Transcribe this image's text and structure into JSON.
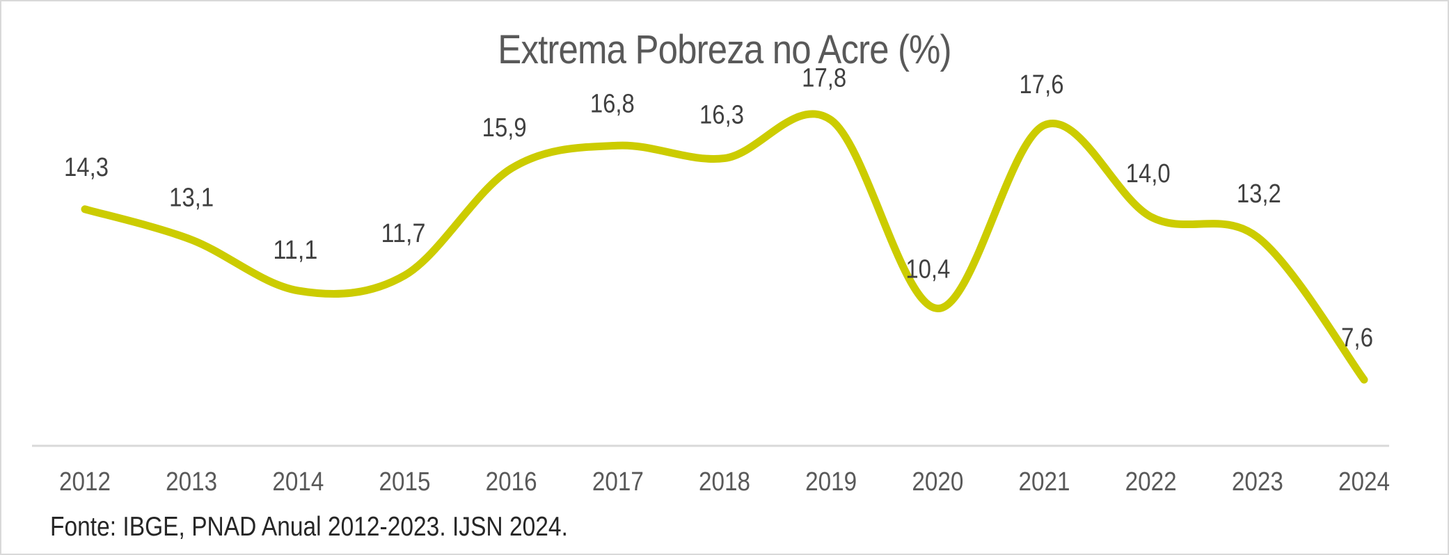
{
  "chart_data": {
    "type": "line",
    "title": "Extrema Pobreza no Acre (%)",
    "xlabel": "",
    "ylabel": "",
    "categories": [
      "2012",
      "2013",
      "2014",
      "2015",
      "2016",
      "2017",
      "2018",
      "2019",
      "2020",
      "2021",
      "2022",
      "2023",
      "2024"
    ],
    "series": [
      {
        "name": "Extrema Pobreza no Acre (%)",
        "values": [
          14.3,
          13.1,
          11.1,
          11.7,
          15.9,
          16.8,
          16.3,
          17.8,
          10.4,
          17.6,
          14.0,
          13.2,
          7.6
        ],
        "labels": [
          "14,3",
          "13,1",
          "11,1",
          "11,7",
          "15,9",
          "16,8",
          "16,3",
          "17,8",
          "10,4",
          "17,6",
          "14,0",
          "13,2",
          "7,6"
        ],
        "color": "#cccc00",
        "smoothed": true
      }
    ],
    "grid": false,
    "legend": "none",
    "axis_color": "#d9d9d9"
  },
  "source_note": "Fonte: IBGE, PNAD Anual 2012-2023. IJSN 2024."
}
